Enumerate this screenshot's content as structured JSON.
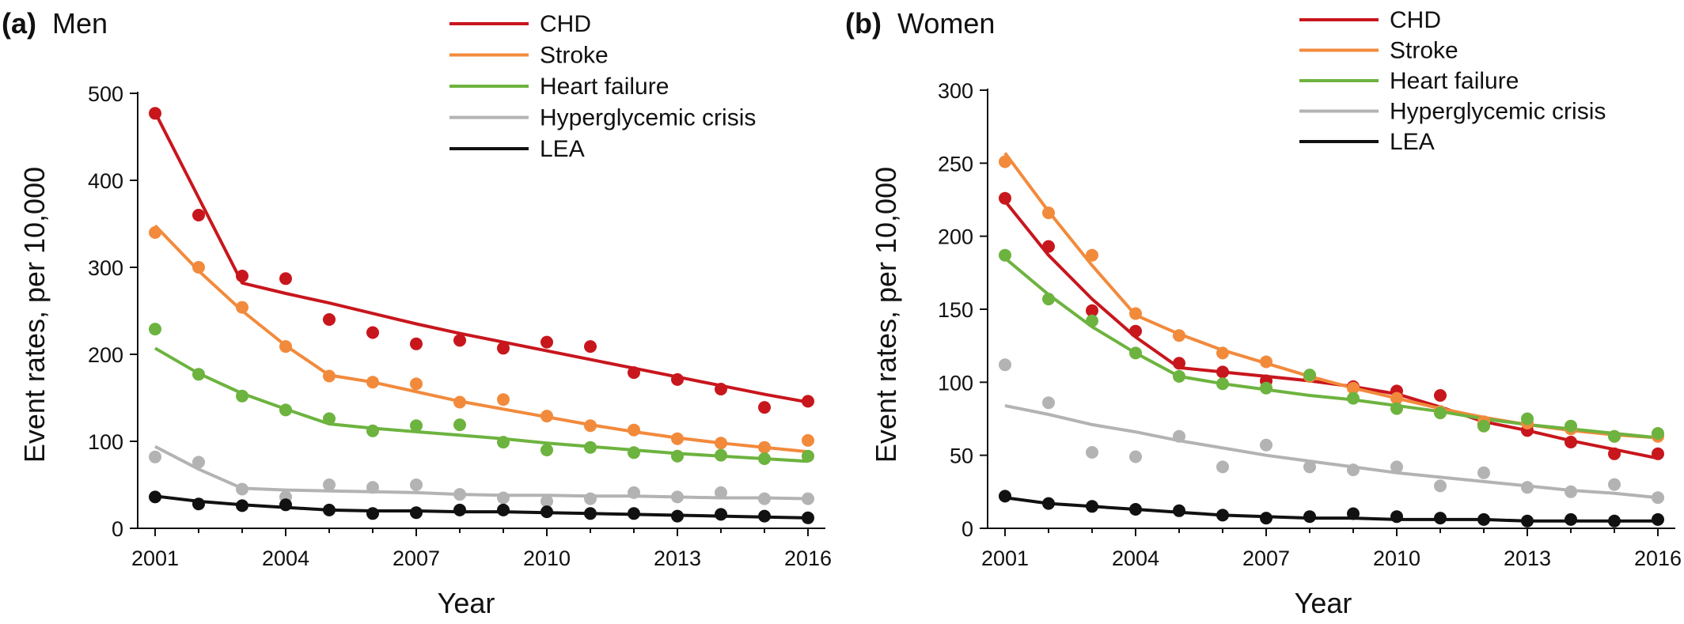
{
  "chart_data": [
    {
      "type": "scatter",
      "panel_letter": "(a)",
      "panel_title": "Men",
      "xlabel": "Year",
      "ylabel": "Event rates, per 10,000",
      "ylim": [
        0,
        500
      ],
      "y_ticks": [
        "0",
        "100",
        "200",
        "300",
        "400",
        "500"
      ],
      "xlim": [
        2000.6,
        2016.4
      ],
      "x_ticks": [
        "2001",
        "2004",
        "2007",
        "2010",
        "2013",
        "2016"
      ],
      "legend_position": "top-right",
      "grid": false,
      "x": [
        2001,
        2002,
        2003,
        2004,
        2005,
        2006,
        2007,
        2008,
        2009,
        2010,
        2011,
        2012,
        2013,
        2014,
        2015,
        2016
      ],
      "series": [
        {
          "name": "CHD",
          "color": "#c8161d",
          "points": [
            477,
            360,
            290,
            287,
            240,
            225,
            212,
            216,
            207,
            214,
            209,
            179,
            171,
            160,
            139,
            146
          ],
          "fit": [
            478,
            380,
            282,
            270,
            259,
            247,
            235,
            224,
            214,
            204,
            194,
            184,
            174,
            164,
            154,
            145
          ]
        },
        {
          "name": "Stroke",
          "color": "#f28a3c",
          "points": [
            340,
            300,
            254,
            209,
            175,
            168,
            166,
            145,
            148,
            129,
            118,
            113,
            103,
            98,
            93,
            101
          ],
          "fit": [
            348,
            296,
            250,
            210,
            176,
            168,
            157,
            146,
            137,
            128,
            119,
            111,
            104,
            98,
            93,
            88
          ]
        },
        {
          "name": "Heart failure",
          "color": "#6db33f",
          "points": [
            229,
            177,
            152,
            136,
            126,
            112,
            118,
            119,
            99,
            90,
            93,
            87,
            83,
            84,
            80,
            83
          ],
          "fit": [
            207,
            178,
            155,
            137,
            120,
            115,
            111,
            107,
            103,
            98,
            94,
            90,
            86,
            83,
            80,
            77
          ]
        },
        {
          "name": "Hyperglycemic crisis",
          "color": "#b3b3b3",
          "points": [
            82,
            76,
            45,
            36,
            50,
            47,
            50,
            39,
            35,
            31,
            34,
            41,
            36,
            41,
            34,
            34
          ],
          "fit": [
            94,
            68,
            46,
            44,
            43,
            42,
            41,
            39,
            38,
            38,
            37,
            37,
            36,
            35,
            35,
            34
          ]
        },
        {
          "name": "LEA",
          "color": "#111111",
          "points": [
            36,
            28,
            26,
            27,
            21,
            17,
            18,
            21,
            21,
            19,
            17,
            17,
            14,
            16,
            14,
            12
          ],
          "fit": [
            37,
            31,
            27,
            24,
            21,
            20,
            20,
            19,
            19,
            18,
            17,
            16,
            15,
            14,
            13,
            12
          ]
        }
      ]
    },
    {
      "type": "scatter",
      "panel_letter": "(b)",
      "panel_title": "Women",
      "xlabel": "Year",
      "ylabel": "Event rates, per 10,000",
      "ylim": [
        0,
        300
      ],
      "y_ticks": [
        "0",
        "50",
        "100",
        "150",
        "200",
        "250",
        "300"
      ],
      "xlim": [
        2000.6,
        2016.4
      ],
      "x_ticks": [
        "2001",
        "2004",
        "2007",
        "2010",
        "2013",
        "2016"
      ],
      "legend_position": "top-right",
      "grid": false,
      "x": [
        2001,
        2002,
        2003,
        2004,
        2005,
        2006,
        2007,
        2008,
        2009,
        2010,
        2011,
        2012,
        2013,
        2014,
        2015,
        2016
      ],
      "series": [
        {
          "name": "CHD",
          "color": "#c8161d",
          "points": [
            226,
            193,
            149,
            135,
            113,
            107,
            101,
            104,
            97,
            94,
            91,
            71,
            67,
            59,
            51,
            51
          ],
          "fit": [
            224,
            187,
            157,
            131,
            110,
            107,
            104,
            101,
            97,
            92,
            83,
            73,
            67,
            60,
            54,
            48
          ]
        },
        {
          "name": "Stroke",
          "color": "#f28a3c",
          "points": [
            251,
            216,
            187,
            147,
            132,
            120,
            114,
            104,
            96,
            89,
            80,
            73,
            72,
            68,
            63,
            63
          ],
          "fit": [
            257,
            217,
            180,
            146,
            133,
            122,
            113,
            104,
            96,
            89,
            82,
            76,
            71,
            67,
            64,
            62
          ]
        },
        {
          "name": "Heart failure",
          "color": "#6db33f",
          "points": [
            187,
            157,
            142,
            120,
            104,
            99,
            96,
            105,
            89,
            82,
            79,
            70,
            75,
            70,
            63,
            65
          ],
          "fit": [
            185,
            160,
            138,
            120,
            104,
            99,
            95,
            91,
            88,
            84,
            80,
            75,
            71,
            68,
            65,
            62
          ]
        },
        {
          "name": "Hyperglycemic crisis",
          "color": "#b3b3b3",
          "points": [
            112,
            86,
            52,
            49,
            63,
            42,
            57,
            42,
            40,
            42,
            29,
            38,
            28,
            25,
            30,
            21
          ],
          "fit": [
            84,
            78,
            71,
            66,
            60,
            55,
            50,
            46,
            42,
            38,
            35,
            32,
            29,
            26,
            24,
            21
          ]
        },
        {
          "name": "LEA",
          "color": "#111111",
          "points": [
            22,
            17,
            15,
            13,
            12,
            9,
            7,
            8,
            10,
            8,
            7,
            6,
            5,
            6,
            5,
            6
          ],
          "fit": [
            21,
            17,
            15,
            13,
            11,
            9,
            8,
            7,
            7,
            6,
            6,
            6,
            5,
            5,
            5,
            5
          ]
        }
      ]
    }
  ]
}
